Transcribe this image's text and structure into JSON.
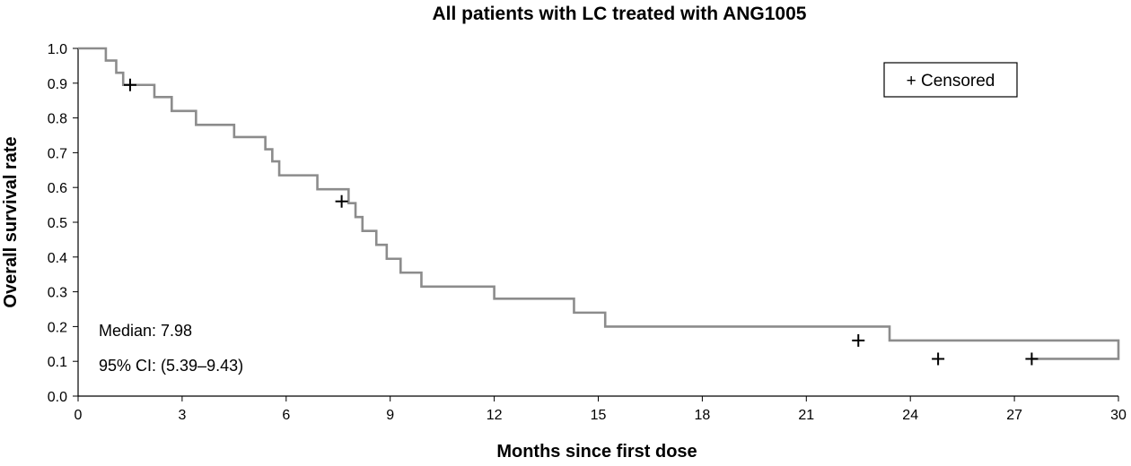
{
  "chart_data": {
    "type": "line",
    "subtype": "kaplan-meier-step",
    "title": "All patients with LC treated with ANG1005",
    "xlabel": "Months since first dose",
    "ylabel": "Overall survival rate",
    "xlim": [
      0,
      30
    ],
    "ylim": [
      0,
      1.0
    ],
    "xticks": [
      0,
      3,
      6,
      9,
      12,
      15,
      18,
      21,
      24,
      27,
      30
    ],
    "yticks": [
      0.0,
      0.1,
      0.2,
      0.3,
      0.4,
      0.5,
      0.6,
      0.7,
      0.8,
      0.9,
      1.0
    ],
    "ytick_labels": [
      "0.0",
      "0.1",
      "0.2",
      "0.3",
      "0.4",
      "0.5",
      "0.6",
      "0.7",
      "0.8",
      "0.9",
      "1.0"
    ],
    "grid": false,
    "line_color": "#8c8c8c",
    "series": [
      {
        "x": [
          0,
          0.8,
          1.1,
          1.3,
          2.2,
          2.7,
          3.4,
          4.5,
          5.4,
          5.6,
          5.8,
          6.9,
          7.8,
          8.0,
          8.2,
          8.6,
          8.9,
          9.3,
          9.9,
          12.0,
          14.3,
          15.2,
          23.4,
          30
        ],
        "y": [
          1.0,
          0.965,
          0.93,
          0.895,
          0.86,
          0.82,
          0.78,
          0.745,
          0.71,
          0.675,
          0.635,
          0.595,
          0.555,
          0.515,
          0.475,
          0.435,
          0.395,
          0.355,
          0.315,
          0.28,
          0.24,
          0.2,
          0.16,
          0.107
        ],
        "x_end": 27.5
      }
    ],
    "censored": [
      {
        "x": 1.5,
        "y": 0.895
      },
      {
        "x": 7.6,
        "y": 0.56
      },
      {
        "x": 22.5,
        "y": 0.16
      },
      {
        "x": 24.8,
        "y": 0.107
      },
      {
        "x": 27.5,
        "y": 0.107
      }
    ],
    "legend": {
      "position": "top-right",
      "label": "+ Censored"
    },
    "annotations": [
      "Median: 7.98",
      "95% CI: (5.39–9.43)"
    ]
  }
}
